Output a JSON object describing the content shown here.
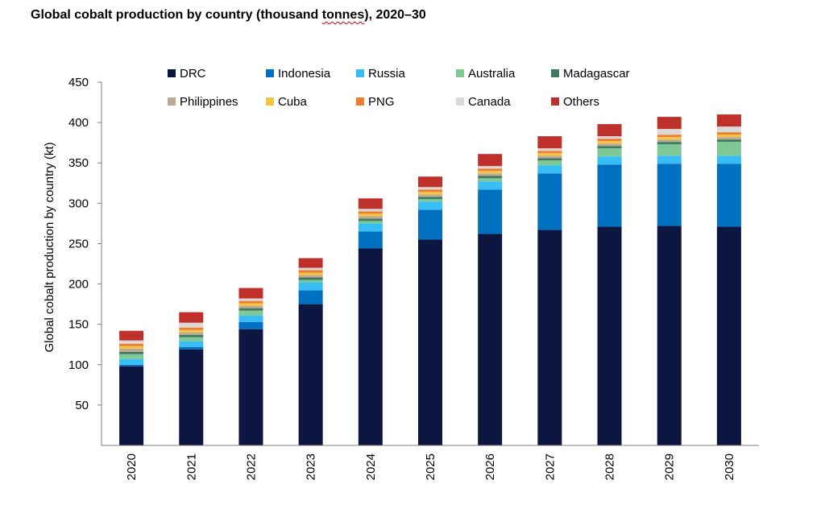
{
  "title_parts": {
    "before": "Global cobalt production by country (thousand ",
    "squiggle": "tonnes",
    "after": "), 2020–30"
  },
  "chart_data": {
    "type": "bar",
    "stacked": true,
    "title": "Global cobalt production by country (thousand tonnes), 2020–30",
    "ylabel": "Global cobalt production by country (kt)",
    "xlabel": "",
    "ylim": [
      0,
      450
    ],
    "yticks": [
      50,
      100,
      150,
      200,
      250,
      300,
      350,
      400,
      450
    ],
    "categories": [
      "2020",
      "2021",
      "2022",
      "2023",
      "2024",
      "2025",
      "2026",
      "2027",
      "2028",
      "2029",
      "2030"
    ],
    "grid": false,
    "legend_position": "top",
    "series": [
      {
        "name": "DRC",
        "color": "#0c1640",
        "values": [
          98,
          119,
          144,
          175,
          244,
          255,
          262,
          267,
          271,
          272,
          271
        ]
      },
      {
        "name": "Indonesia",
        "color": "#0070c0",
        "values": [
          2,
          3,
          9,
          17,
          21,
          37,
          55,
          70,
          77,
          77,
          78
        ]
      },
      {
        "name": "Russia",
        "color": "#39bdf5",
        "values": [
          7,
          7,
          8,
          10,
          10,
          10,
          10,
          10,
          10,
          10,
          10
        ]
      },
      {
        "name": "Australia",
        "color": "#7ec895",
        "values": [
          6,
          5,
          6,
          3,
          3,
          3,
          4,
          6,
          10,
          14,
          17
        ]
      },
      {
        "name": "Madagascar",
        "color": "#3e7a5e",
        "values": [
          3,
          3,
          3,
          3,
          3,
          3,
          3,
          3,
          3,
          3,
          3
        ]
      },
      {
        "name": "Philippines",
        "color": "#bfa994",
        "values": [
          4,
          3,
          3,
          3,
          3,
          3,
          3,
          3,
          3,
          3,
          3
        ]
      },
      {
        "name": "Cuba",
        "color": "#f4c542",
        "values": [
          3,
          3,
          3,
          3,
          3,
          3,
          3,
          3,
          3,
          3,
          3
        ]
      },
      {
        "name": "PNG",
        "color": "#ed7d31",
        "values": [
          3,
          3,
          3,
          3,
          3,
          3,
          3,
          3,
          3,
          3,
          3
        ]
      },
      {
        "name": "Canada",
        "color": "#d9d9d9",
        "values": [
          4,
          6,
          3,
          3,
          3,
          3,
          3,
          3,
          3,
          7,
          7
        ]
      },
      {
        "name": "Others",
        "color": "#c0302b",
        "values": [
          12,
          13,
          13,
          12,
          13,
          13,
          15,
          15,
          15,
          15,
          15
        ]
      }
    ]
  }
}
